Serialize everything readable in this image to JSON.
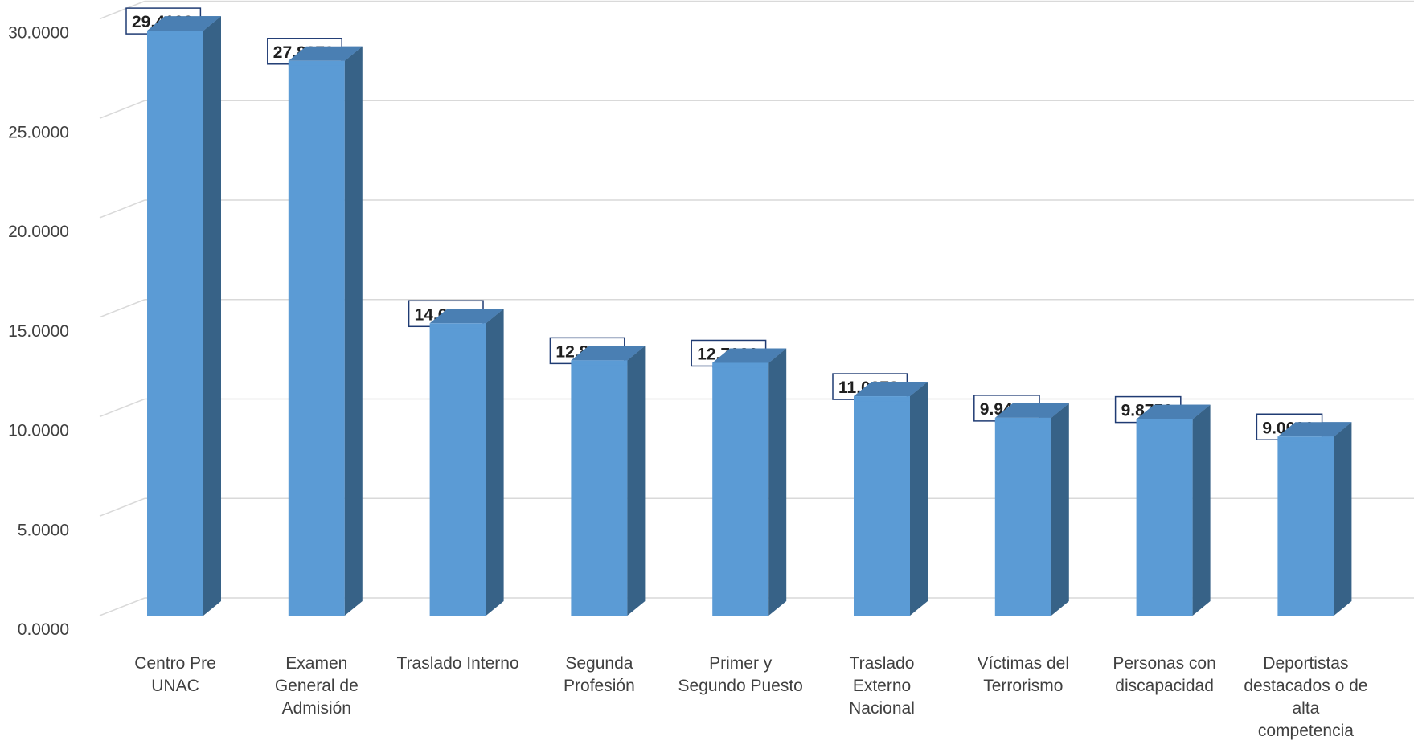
{
  "chart_data": {
    "type": "bar",
    "categories": [
      [
        "Centro Pre",
        "UNAC"
      ],
      [
        "Examen",
        "General de",
        "Admisión"
      ],
      [
        "Traslado Interno"
      ],
      [
        "Segunda",
        "Profesión"
      ],
      [
        "Primer y",
        "Segundo Puesto"
      ],
      [
        "Traslado",
        "Externo",
        "Nacional"
      ],
      [
        "Víctimas del",
        "Terrorismo"
      ],
      [
        "Personas con",
        "discapacidad"
      ],
      [
        "Deportistas",
        "destacados o de",
        "alta",
        "competencia"
      ]
    ],
    "values": [
      29.41,
      27.8879,
      14.6957,
      12.8333,
      12.7083,
      11.0278,
      9.9444,
      9.875,
      9.0
    ],
    "data_labels": [
      "29.4100",
      "27.8879",
      "14.6957",
      "12.8333",
      "12.7083",
      "11.0278",
      "9.9444",
      "9.8750",
      "9.0000"
    ],
    "y_ticks": [
      "0.0000",
      "5.0000",
      "10.0000",
      "15.0000",
      "20.0000",
      "25.0000",
      "30.0000"
    ],
    "ylim": [
      0,
      30
    ],
    "grid": true,
    "style": "3d-column",
    "colors": {
      "bar_front": "#5b9bd5",
      "bar_side": "#376287",
      "bar_top": "#4a7fb3",
      "grid": "#d9d9d9",
      "label_border": "#1f3b73",
      "text": "#404040"
    }
  }
}
